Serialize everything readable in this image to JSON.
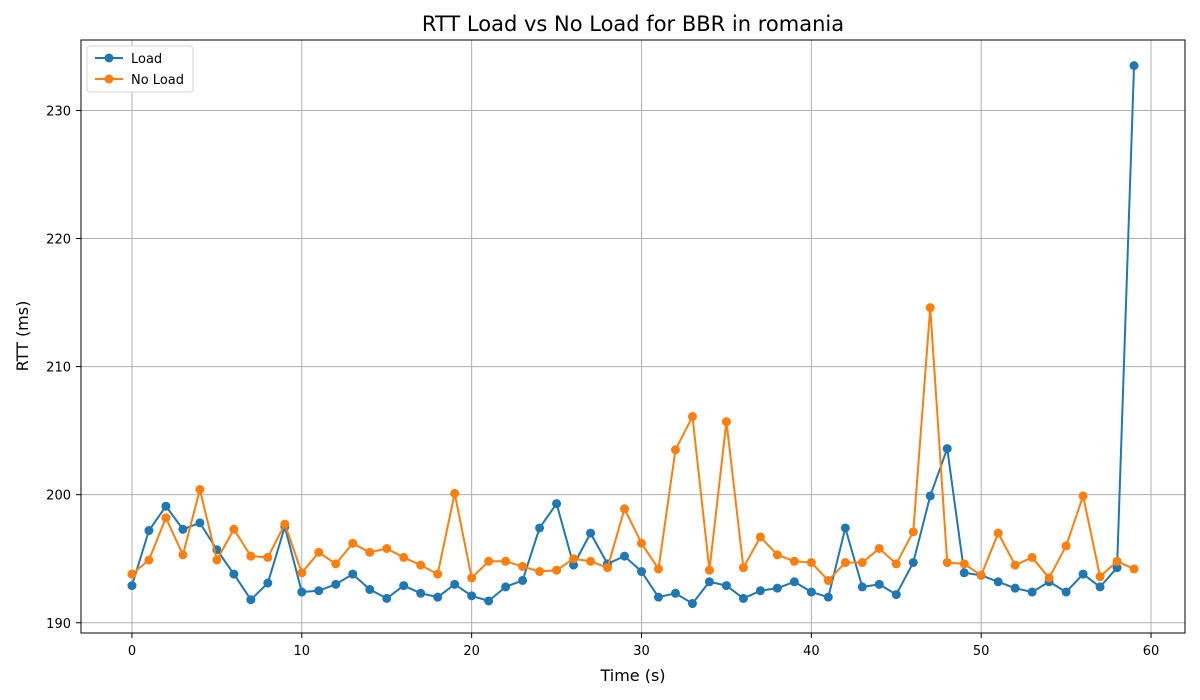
{
  "chart_data": {
    "type": "line",
    "title": "RTT Load vs No Load for BBR in romania",
    "xlabel": "Time (s)",
    "ylabel": "RTT (ms)",
    "xlim": [
      -3,
      62
    ],
    "ylim": [
      189.2,
      235.5
    ],
    "xticks": [
      0,
      10,
      20,
      30,
      40,
      50,
      60
    ],
    "yticks": [
      190,
      200,
      210,
      220,
      230
    ],
    "grid": true,
    "legend_position": "upper-left",
    "x": [
      0,
      1,
      2,
      3,
      4,
      5,
      6,
      7,
      8,
      9,
      10,
      11,
      12,
      13,
      14,
      15,
      16,
      17,
      18,
      19,
      20,
      21,
      22,
      23,
      24,
      25,
      26,
      27,
      28,
      29,
      30,
      31,
      32,
      33,
      34,
      35,
      36,
      37,
      38,
      39,
      40,
      41,
      42,
      43,
      44,
      45,
      46,
      47,
      48,
      49,
      50,
      51,
      52,
      53,
      54,
      55,
      56,
      57,
      58,
      59
    ],
    "series": [
      {
        "name": "Load",
        "color": "#1f77b4",
        "values": [
          192.9,
          197.2,
          199.1,
          197.3,
          197.8,
          195.7,
          193.8,
          191.8,
          193.1,
          197.5,
          192.4,
          192.5,
          193.0,
          193.8,
          192.6,
          191.9,
          192.9,
          192.3,
          192.0,
          193.0,
          192.1,
          191.7,
          192.8,
          193.3,
          197.4,
          199.3,
          194.5,
          197.0,
          194.6,
          195.2,
          194.0,
          192.0,
          192.3,
          191.5,
          193.2,
          192.9,
          191.9,
          192.5,
          192.7,
          193.2,
          192.4,
          192.0,
          197.4,
          192.8,
          193.0,
          192.2,
          194.7,
          199.9,
          203.6,
          193.9,
          193.7,
          193.2,
          192.7,
          192.4,
          193.2,
          192.4,
          193.8,
          192.8,
          194.3,
          233.5
        ]
      },
      {
        "name": "No Load",
        "color": "#ff7f0e",
        "values": [
          193.8,
          194.9,
          198.2,
          195.3,
          200.4,
          194.9,
          197.3,
          195.2,
          195.1,
          197.7,
          193.9,
          195.5,
          194.6,
          196.2,
          195.5,
          195.8,
          195.1,
          194.5,
          193.8,
          200.1,
          193.5,
          194.8,
          194.8,
          194.4,
          194.0,
          194.1,
          195.0,
          194.8,
          194.3,
          198.9,
          196.2,
          194.2,
          203.5,
          206.1,
          194.1,
          205.7,
          194.3,
          196.7,
          195.3,
          194.8,
          194.7,
          193.3,
          194.7,
          194.7,
          195.8,
          194.6,
          197.1,
          214.6,
          194.7,
          194.6,
          193.7,
          197.0,
          194.5,
          195.1,
          193.5,
          196.0,
          199.9,
          193.6,
          194.8,
          194.2
        ]
      }
    ]
  }
}
